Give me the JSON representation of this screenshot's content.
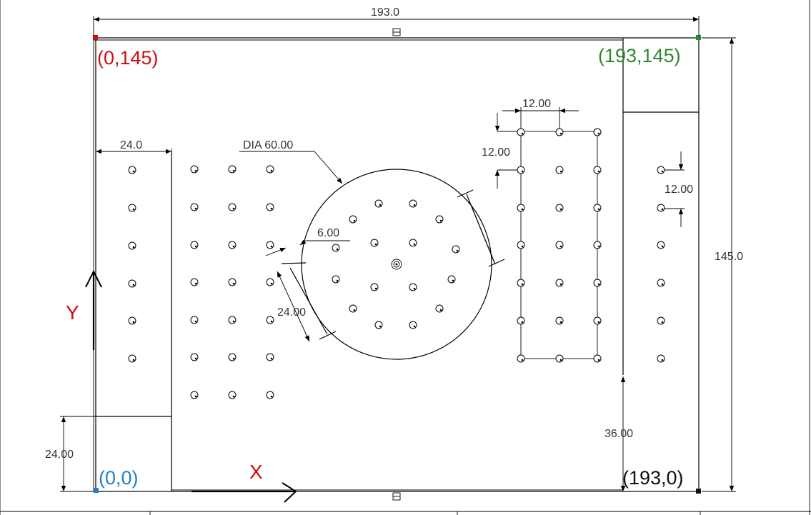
{
  "dimensions": {
    "overall_width": "193.0",
    "overall_height": "145.0",
    "left_strip_width": "24.0",
    "bottom_left_height": "24.00",
    "right_strip_bottom": "36.00",
    "circle_diameter": "DIA 60.00",
    "ring_spacing": "6.00",
    "slot_length": "24.00",
    "grid_x_pitch": "12.00",
    "grid_y_pitch": "12.00",
    "right_column_pitch": "12.00"
  },
  "corners": {
    "top_left": {
      "label": "(0,145)",
      "color": "#cc1111"
    },
    "top_right": {
      "label": "(193,145)",
      "color": "#2a8a2a"
    },
    "bottom_left": {
      "label": "(0,0)",
      "color": "#1f7fd0"
    },
    "bottom_right": {
      "label": "(193,0)",
      "color": "#111111"
    }
  },
  "axes": {
    "x_label": "X",
    "y_label": "Y",
    "color": "#cc1111"
  }
}
